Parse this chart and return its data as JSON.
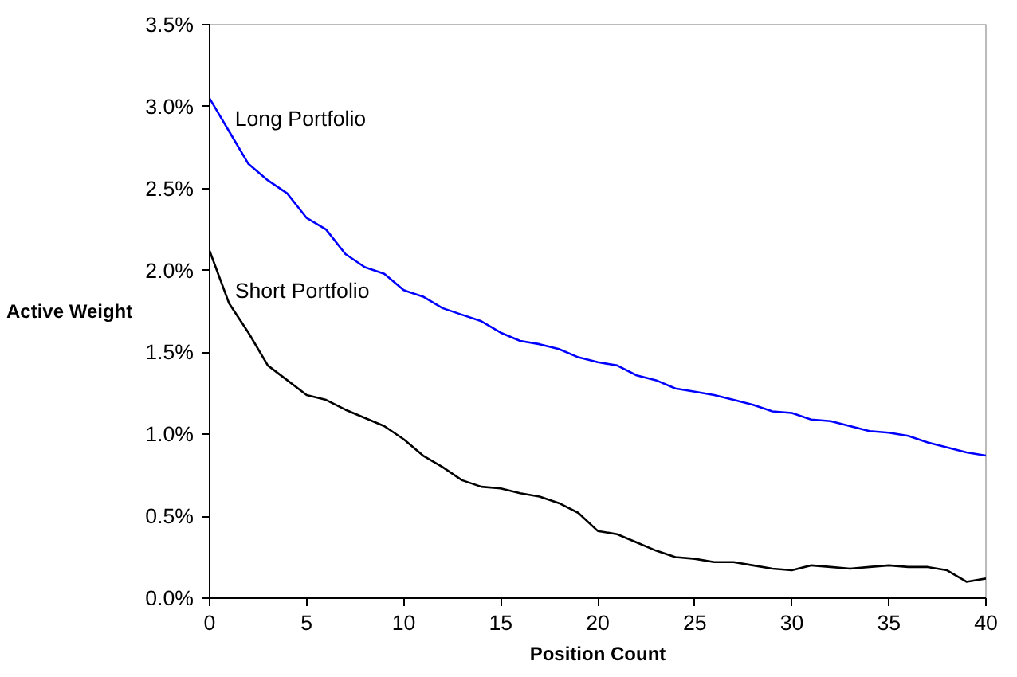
{
  "chart_data": {
    "type": "line",
    "xlabel": "Position Count",
    "ylabel": "Active Weight",
    "x": [
      0,
      1,
      2,
      3,
      4,
      5,
      6,
      7,
      8,
      9,
      10,
      11,
      12,
      13,
      14,
      15,
      16,
      17,
      18,
      19,
      20,
      21,
      22,
      23,
      24,
      25,
      26,
      27,
      28,
      29,
      30,
      31,
      32,
      33,
      34,
      35,
      36,
      37,
      38,
      39,
      40
    ],
    "series": [
      {
        "name": "Long Portfolio",
        "color": "#0000ff",
        "values": [
          3.05,
          2.85,
          2.65,
          2.55,
          2.47,
          2.32,
          2.25,
          2.1,
          2.02,
          1.98,
          1.88,
          1.84,
          1.77,
          1.73,
          1.69,
          1.62,
          1.57,
          1.55,
          1.52,
          1.47,
          1.44,
          1.42,
          1.36,
          1.33,
          1.28,
          1.26,
          1.24,
          1.21,
          1.18,
          1.14,
          1.13,
          1.09,
          1.08,
          1.05,
          1.02,
          1.01,
          0.99,
          0.95,
          0.92,
          0.89,
          0.87
        ]
      },
      {
        "name": "Short Portfolio",
        "color": "#000000",
        "values": [
          2.12,
          1.8,
          1.62,
          1.42,
          1.33,
          1.24,
          1.21,
          1.15,
          1.1,
          1.05,
          0.97,
          0.87,
          0.8,
          0.72,
          0.68,
          0.67,
          0.64,
          0.62,
          0.58,
          0.52,
          0.41,
          0.39,
          0.34,
          0.29,
          0.25,
          0.24,
          0.22,
          0.22,
          0.2,
          0.18,
          0.17,
          0.2,
          0.19,
          0.18,
          0.19,
          0.2,
          0.19,
          0.19,
          0.17,
          0.1,
          0.12
        ]
      }
    ],
    "xlim": [
      0,
      40
    ],
    "xticks": [
      0,
      5,
      10,
      15,
      20,
      25,
      30,
      35,
      40
    ],
    "ylim": [
      0,
      3.5
    ],
    "yticks": [
      {
        "value": 0,
        "label": "0.0%"
      },
      {
        "value": 0.5,
        "label": "0.5%"
      },
      {
        "value": 1,
        "label": "1.0%"
      },
      {
        "value": 1.5,
        "label": "1.5%"
      },
      {
        "value": 2,
        "label": "2.0%"
      },
      {
        "value": 2.5,
        "label": "2.5%"
      },
      {
        "value": 3,
        "label": "3.0%"
      },
      {
        "value": 3.5,
        "label": "3.5%"
      }
    ],
    "grid": false,
    "marker": "none",
    "line_style": "solid"
  }
}
